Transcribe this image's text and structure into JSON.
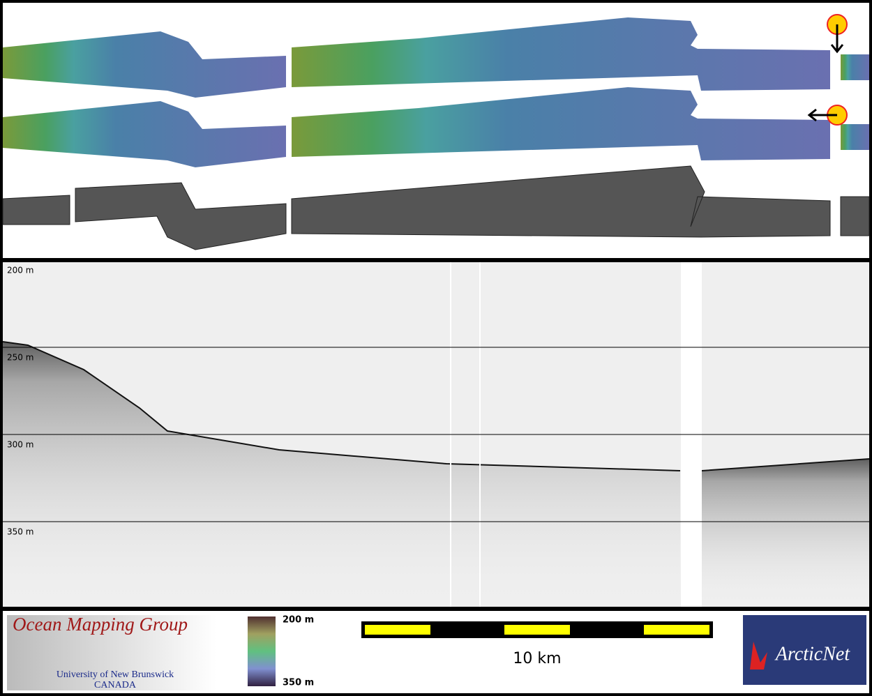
{
  "profile": {
    "depth_labels": [
      "200 m",
      "250 m",
      "300 m",
      "350 m"
    ]
  },
  "footer": {
    "logo_title": "Ocean Mapping Group",
    "logo_university": "University of New Brunswick",
    "logo_country": "CANADA",
    "colorbar_top": "200 m",
    "colorbar_bottom": "350 m",
    "scale_label": "10 km",
    "partner_logo": "ArcticNet"
  }
}
